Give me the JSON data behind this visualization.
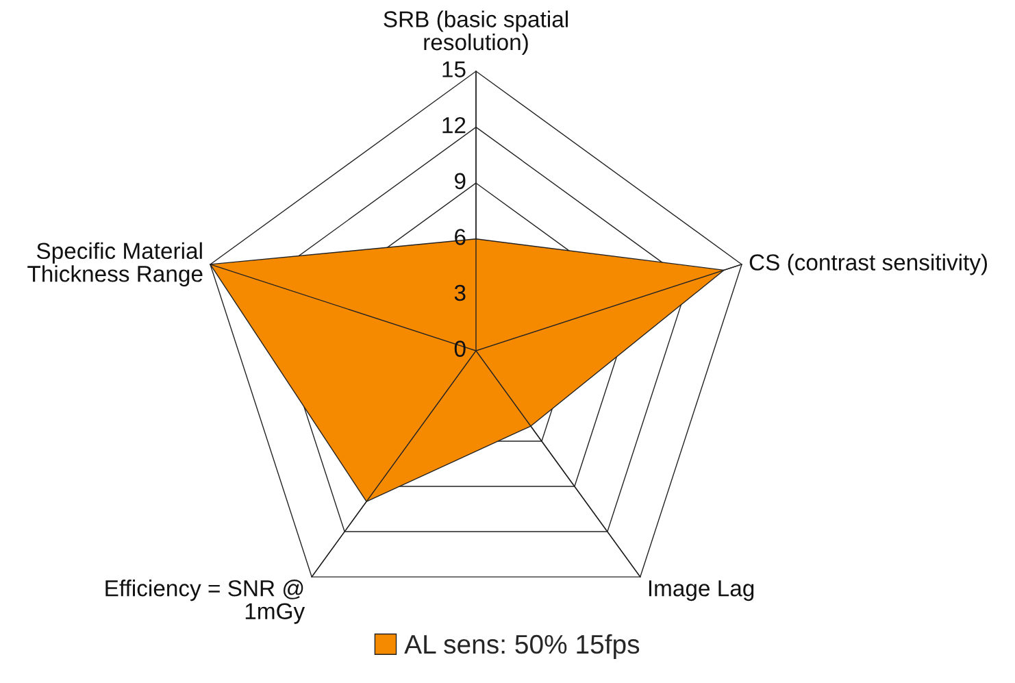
{
  "chart_data": {
    "type": "radar",
    "categories": [
      "SRB (basic spatial\nresolution)",
      "CS (contrast sensitivity)",
      "Image Lag",
      "Efficiency = SNR @\n1mGy",
      "Specific Material\nThickness Range"
    ],
    "series": [
      {
        "name": "AL sens: 50% 15fps",
        "color": "#f58a00",
        "values": [
          6,
          14,
          5,
          10,
          15
        ]
      }
    ],
    "ylim": [
      0,
      15
    ],
    "yticks": [
      0,
      3,
      6,
      9,
      12,
      15
    ],
    "legend": "bottom"
  }
}
